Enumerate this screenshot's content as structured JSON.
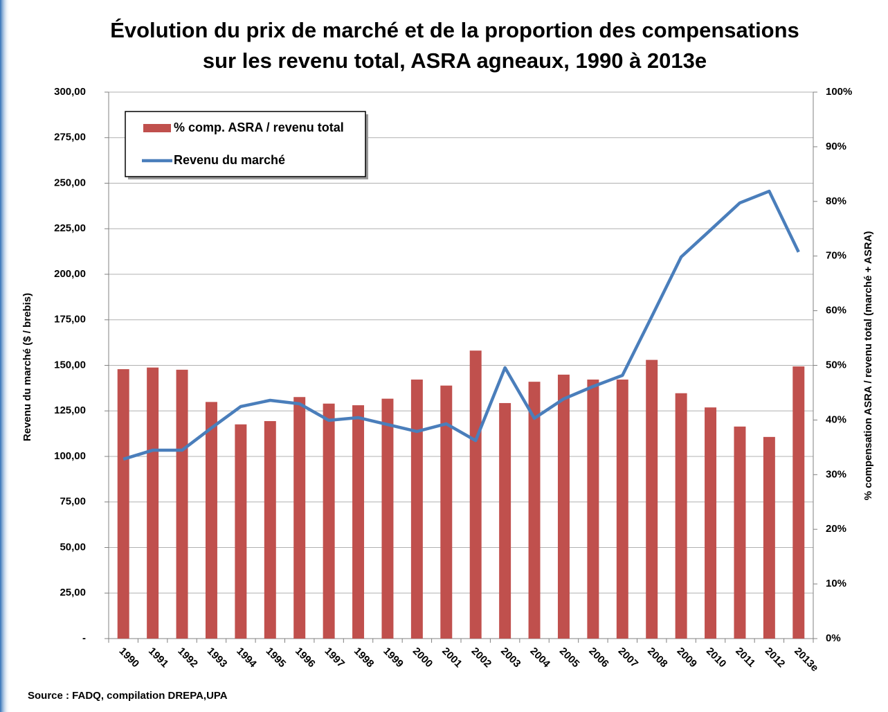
{
  "chart_data": {
    "type": "bar",
    "title": [
      "Évolution du prix de marché et de la proportion des compensations",
      "sur les revenu total, ASRA agneaux, 1990 à 2013e"
    ],
    "y_label": "Revenu du marché ($ / brebis)",
    "y2_label": "% compensation ASRA / revenu total (marché + ASRA)",
    "source": "Source : FADQ, compilation DREPA,UPA",
    "categories": [
      "1990",
      "1991",
      "1992",
      "1993",
      "1994",
      "1995",
      "1996",
      "1997",
      "1998",
      "1999",
      "2000",
      "2001",
      "2002",
      "2003",
      "2004",
      "2005",
      "2006",
      "2007",
      "2008",
      "2009",
      "2010",
      "2011",
      "2012",
      "2013e"
    ],
    "series": [
      {
        "name": "% comp. ASRA / revenu total",
        "type": "bar",
        "axis": "y2",
        "color": "#c0504d",
        "values": [
          49.3,
          49.6,
          49.2,
          43.3,
          39.2,
          39.8,
          44.2,
          43.0,
          42.7,
          43.9,
          47.4,
          46.3,
          52.7,
          43.1,
          47.0,
          48.3,
          47.4,
          47.4,
          51.0,
          44.9,
          42.3,
          38.8,
          36.9,
          49.8
        ]
      },
      {
        "name": "Revenu du marché",
        "type": "line",
        "color": "#4a7ebb",
        "values": [
          98.5,
          103.4,
          103.4,
          115.6,
          127.4,
          130.8,
          128.9,
          119.8,
          121.3,
          117.5,
          113.7,
          117.9,
          108.7,
          148.7,
          120.9,
          131.6,
          138.4,
          144.5,
          176.8,
          209.5,
          224.3,
          239.2,
          245.6,
          212.2
        ]
      }
    ],
    "ylim": [
      0,
      300
    ],
    "yticks": [
      {
        "value": 0,
        "label": "-"
      },
      {
        "value": 25,
        "label": "25,00"
      },
      {
        "value": 50,
        "label": "50,00"
      },
      {
        "value": 75,
        "label": "75,00"
      },
      {
        "value": 100,
        "label": "100,00"
      },
      {
        "value": 125,
        "label": "125,00"
      },
      {
        "value": 150,
        "label": "150,00"
      },
      {
        "value": 175,
        "label": "175,00"
      },
      {
        "value": 200,
        "label": "200,00"
      },
      {
        "value": 225,
        "label": "225,00"
      },
      {
        "value": 250,
        "label": "250,00"
      },
      {
        "value": 275,
        "label": "275,00"
      },
      {
        "value": 300,
        "label": "300,00"
      }
    ],
    "y2lim": [
      0,
      100
    ],
    "y2ticks": [
      {
        "value": 0,
        "label": "0%"
      },
      {
        "value": 10,
        "label": "10%"
      },
      {
        "value": 20,
        "label": "20%"
      },
      {
        "value": 30,
        "label": "30%"
      },
      {
        "value": 40,
        "label": "40%"
      },
      {
        "value": 50,
        "label": "50%"
      },
      {
        "value": 60,
        "label": "60%"
      },
      {
        "value": 70,
        "label": "70%"
      },
      {
        "value": 80,
        "label": "80%"
      },
      {
        "value": 90,
        "label": "90%"
      },
      {
        "value": 100,
        "label": "100%"
      }
    ],
    "grid": true,
    "legend": "top-left"
  }
}
